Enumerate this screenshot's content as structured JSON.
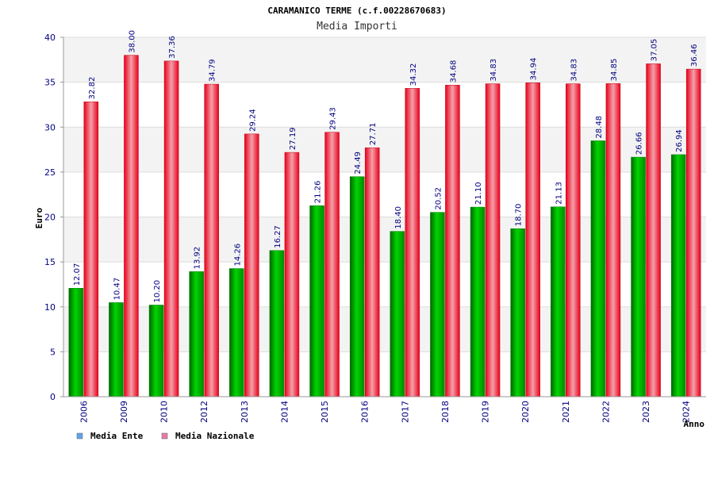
{
  "chart_data": {
    "type": "bar",
    "title": "CARAMANICO TERME (c.f.00228670683)",
    "subtitle": "Media Importi",
    "xlabel": "Anno",
    "ylabel": "Euro",
    "ylim": [
      0,
      40
    ],
    "yticks": [
      0,
      5,
      10,
      15,
      20,
      25,
      30,
      35,
      40
    ],
    "grid": true,
    "legend_position": "bottom-left",
    "categories": [
      "2006",
      "2009",
      "2010",
      "2012",
      "2013",
      "2014",
      "2015",
      "2016",
      "2017",
      "2018",
      "2019",
      "2020",
      "2021",
      "2022",
      "2023",
      "2024"
    ],
    "series": [
      {
        "name": "Media Ente",
        "color": "#00b000",
        "legend_color": "#5da5e8",
        "values": [
          12.07,
          10.47,
          10.2,
          13.92,
          14.26,
          16.27,
          21.26,
          24.49,
          18.4,
          20.52,
          21.1,
          18.7,
          21.13,
          28.48,
          26.66,
          26.94
        ],
        "labels": [
          "12.07",
          "10.47",
          "10.20",
          "13.92",
          "14.26",
          "16.27",
          "21.26",
          "24.49",
          "18.40",
          "20.52",
          "21.10",
          "18.70",
          "21.13",
          "28.48",
          "26.66",
          "26.94"
        ]
      },
      {
        "name": "Media Nazionale",
        "color": "#e8001a",
        "legend_color": "#e87aa8",
        "values": [
          32.82,
          38.0,
          37.36,
          34.79,
          29.24,
          27.19,
          29.43,
          27.71,
          34.32,
          34.68,
          34.83,
          34.94,
          34.83,
          34.85,
          37.05,
          36.46
        ],
        "labels": [
          "32.82",
          "38.00",
          "37.36",
          "34.79",
          "29.24",
          "27.19",
          "29.43",
          "27.71",
          "34.32",
          "34.68",
          "34.83",
          "34.94",
          "34.83",
          "34.85",
          "37.05",
          "36.46"
        ]
      }
    ]
  }
}
